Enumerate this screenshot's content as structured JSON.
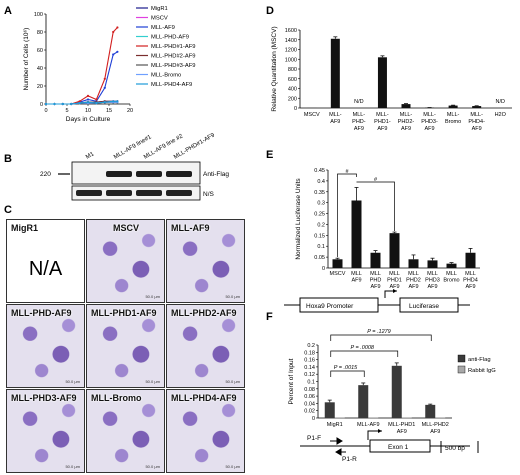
{
  "panel_labels": [
    "A",
    "B",
    "C",
    "D",
    "E",
    "F"
  ],
  "chart_data": [
    {
      "panel": "A",
      "type": "line",
      "ylabel": "Number of Cells (10⁶)",
      "xlabel": "Days in Culture",
      "xticks": [
        0,
        5,
        10,
        15,
        20
      ],
      "yticks": [
        0,
        20,
        40,
        60,
        80,
        100
      ],
      "xlim": [
        0,
        20
      ],
      "ylim": [
        0,
        100
      ],
      "x": [
        0,
        2,
        4,
        6,
        8,
        10,
        12,
        14,
        16,
        17
      ],
      "legend_placement": "top-right",
      "series": [
        {
          "name": "MigR1",
          "color": "#1a1a8c",
          "values": [
            0,
            0,
            0,
            0,
            1,
            2,
            2,
            3,
            3,
            3
          ]
        },
        {
          "name": "MSCV",
          "color": "#e040e0",
          "values": [
            0,
            0,
            0,
            0,
            1,
            2,
            2,
            2,
            3,
            3
          ]
        },
        {
          "name": "MLL-AF9",
          "color": "#1f3fd6",
          "values": [
            0,
            0,
            0,
            0,
            2,
            5,
            3,
            18,
            55,
            58
          ]
        },
        {
          "name": "MLL-PHD-AF9",
          "color": "#33cfcf",
          "values": [
            0,
            0,
            0,
            0,
            1,
            2,
            2,
            2,
            2,
            2
          ]
        },
        {
          "name": "MLL-PHD#1-AF9",
          "color": "#d21f1f",
          "values": [
            0,
            0,
            0,
            0,
            3,
            9,
            5,
            28,
            80,
            85
          ]
        },
        {
          "name": "MLL-PHD#2-AF9",
          "color": "#7a2e2e",
          "values": [
            0,
            0,
            0,
            0,
            1,
            2,
            2,
            3,
            3,
            3
          ]
        },
        {
          "name": "MLL-PHD#3-AF9",
          "color": "#555555",
          "values": [
            0,
            0,
            0,
            0,
            1,
            2,
            1,
            2,
            2,
            2
          ]
        },
        {
          "name": "MLL-Bromo",
          "color": "#6fa0ff",
          "values": [
            0,
            0,
            0,
            0,
            1,
            1,
            1,
            2,
            2,
            2
          ]
        },
        {
          "name": "MLL-PHD4-AF9",
          "color": "#1e9bd8",
          "values": [
            0,
            0,
            0,
            0,
            1,
            2,
            1,
            2,
            3,
            3
          ]
        }
      ]
    },
    {
      "panel": "D",
      "type": "bar",
      "ylabel": "Relative Quantitation (MSCV)",
      "ylim": [
        0,
        1600
      ],
      "yticks": [
        0,
        200,
        400,
        600,
        800,
        1000,
        1200,
        1400,
        1600
      ],
      "categories": [
        "MSCV",
        "MLL-AF9",
        "MLL-PHD-AF9",
        "MLL-PHD1-AF9",
        "MLL-PHD2-AF9",
        "MLL-PHD3-AF9",
        "MLL-Bromo",
        "MLL-PHD4-AF9",
        "H2O"
      ],
      "values": [
        1,
        1420,
        0,
        1040,
        80,
        8,
        50,
        40,
        0
      ],
      "errors": [
        0,
        40,
        0,
        30,
        10,
        2,
        8,
        6,
        0
      ],
      "annotations": [
        {
          "category": "MLL-PHD-AF9",
          "text": "N/D"
        },
        {
          "category": "H2O",
          "text": "N/D"
        }
      ]
    },
    {
      "panel": "E",
      "type": "bar",
      "ylabel": "Normalized Luciferase Units",
      "ylim": [
        0,
        0.45
      ],
      "yticks": [
        0,
        0.05,
        0.1,
        0.15,
        0.2,
        0.25,
        0.3,
        0.35,
        0.4,
        0.45
      ],
      "categories": [
        "MSCV",
        "MLL-AF9",
        "MLL-PHD-AF9",
        "MLL-PHD1-AF9",
        "MLL-PHD2-AF9",
        "MLL-PHD3-AF9",
        "MLL-Bromo",
        "MLL-PHD4-AF9"
      ],
      "values": [
        0.04,
        0.31,
        0.07,
        0.16,
        0.04,
        0.035,
        0.02,
        0.07
      ],
      "errors": [
        0.005,
        0.06,
        0.01,
        0.005,
        0.02,
        0.01,
        0.005,
        0.02
      ],
      "significance": [
        "#",
        "#"
      ],
      "construct": {
        "promoter": "Hoxa9 Promoter",
        "reporter": "Luciferase"
      }
    },
    {
      "panel": "F",
      "type": "bar",
      "ylabel": "Percent of Input",
      "ylim": [
        0,
        0.2
      ],
      "yticks": [
        0,
        0.02,
        0.04,
        0.06,
        0.08,
        0.1,
        0.12,
        0.14,
        0.16,
        0.18,
        0.2
      ],
      "categories": [
        "MigR1",
        "MLL-AF9",
        "MLL-PHD1-AF9",
        "MLL-PHD2-AF9"
      ],
      "series": [
        {
          "name": "anti-Flag",
          "color": "#3a3a3a",
          "values": [
            0.043,
            0.09,
            0.143,
            0.036
          ],
          "errors": [
            0.006,
            0.006,
            0.008,
            0.002
          ]
        },
        {
          "name": "Rabbit IgG",
          "color": "#a8a8a8",
          "values": [
            0.001,
            0.001,
            0.001,
            0.001
          ],
          "errors": [
            0,
            0,
            0,
            0
          ]
        }
      ],
      "legend_placement": "right",
      "pvalues": [
        {
          "text": "P = .0015",
          "from": "MigR1",
          "to": "MLL-AF9"
        },
        {
          "text": "P = .0008",
          "from": "MigR1",
          "to": "MLL-PHD1-AF9"
        },
        {
          "text": "P = .1279",
          "from": "MigR1",
          "to": "MLL-PHD2-AF9"
        }
      ],
      "gene_map": {
        "primers": [
          "P1-F",
          "P1-R"
        ],
        "exon": "Exon 1",
        "scale": "500 bp"
      }
    }
  ],
  "western": {
    "lanes": [
      "M1",
      "MLL-AF9 line#1",
      "MLL-AF9 line #2",
      "MLL-PHD#1-AF9"
    ],
    "marker": "220",
    "bands": [
      "Anti-Flag",
      "N/S"
    ]
  },
  "micrographs": [
    {
      "title": "MigR1",
      "na": "N/A"
    },
    {
      "title": "MSCV",
      "scale": "50.0 μm"
    },
    {
      "title": "MLL-AF9",
      "scale": "50.0 μm"
    },
    {
      "title": "MLL-PHD-AF9",
      "scale": "50.0 μm"
    },
    {
      "title": "MLL-PHD1-AF9",
      "scale": "50.0 μm"
    },
    {
      "title": "MLL-PHD2-AF9",
      "scale": "50.0 μm"
    },
    {
      "title": "MLL-PHD3-AF9",
      "scale": "50.0 μm"
    },
    {
      "title": "MLL-Bromo",
      "scale": "50.0 μm"
    },
    {
      "title": "MLL-PHD4-AF9",
      "scale": "50.0 μm"
    }
  ]
}
